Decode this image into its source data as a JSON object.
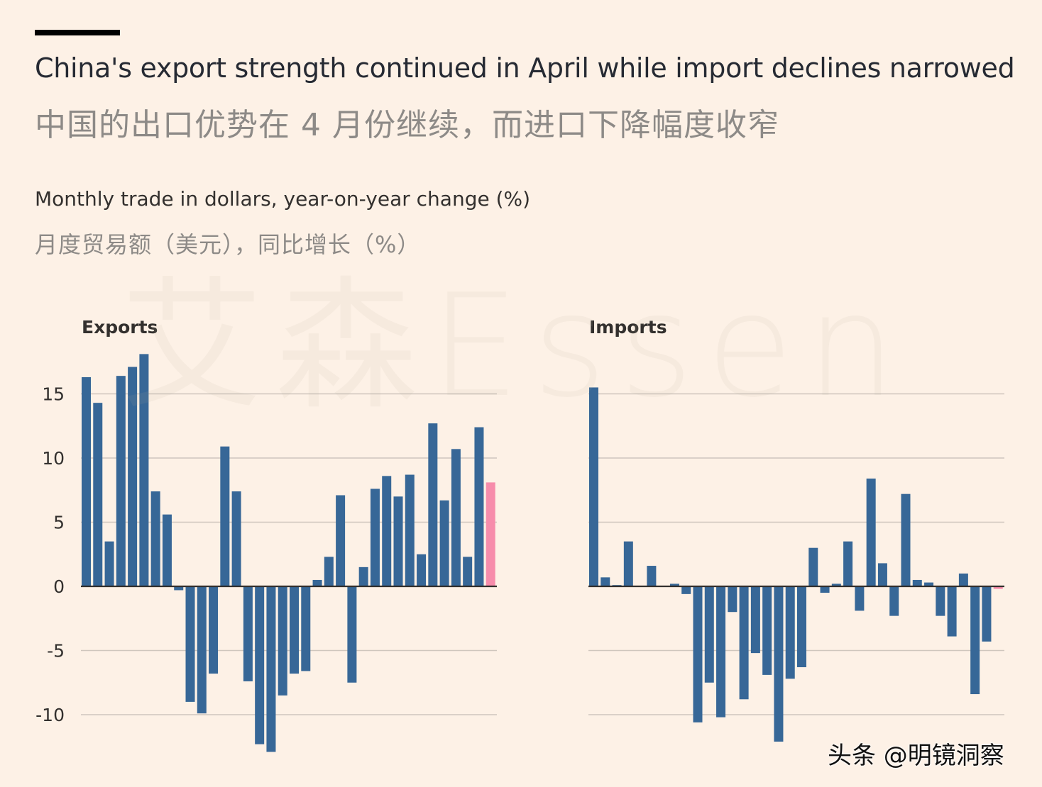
{
  "header": {
    "title": "China's export strength continued in April while import declines narrowed",
    "title_cn": "中国的出口优势在 4 月份继续，而进口下降幅度收窄",
    "subtitle": "Monthly trade in dollars, year-on-year change (%)",
    "subtitle_cn": "月度贸易额（美元），同比增长（%）"
  },
  "watermark": "艾森Essen",
  "credit": "头条 @明镜洞察",
  "colors": {
    "background": "#fdf1e6",
    "bar": "#376797",
    "highlight": "#f78cab",
    "grid": "#cfc6bd",
    "zero_line": "#33302e"
  },
  "chart_data": [
    {
      "type": "bar",
      "title": "Exports",
      "ylim": [
        -12,
        18
      ],
      "y_ticks": [
        15,
        10,
        5,
        0,
        -5,
        -10
      ],
      "y_tick_labels": [
        "15",
        "10",
        "5",
        "0",
        "-5",
        "-10"
      ],
      "grid": true,
      "values": [
        16.3,
        14.3,
        3.5,
        16.4,
        17.1,
        18.1,
        7.4,
        5.6,
        -0.3,
        -9.0,
        -9.9,
        -6.8,
        10.9,
        7.4,
        -7.4,
        -12.3,
        -12.9,
        -8.5,
        -6.8,
        -6.6,
        0.5,
        2.3,
        7.1,
        -7.5,
        1.5,
        7.6,
        8.6,
        7.0,
        8.7,
        2.5,
        12.7,
        6.7,
        10.7,
        2.3,
        12.4,
        8.1
      ],
      "highlight_last": true
    },
    {
      "type": "bar",
      "title": "Imports",
      "ylim": [
        -12,
        18
      ],
      "y_ticks": [
        15,
        10,
        5,
        0,
        -5,
        -10
      ],
      "grid": true,
      "values": [
        15.5,
        0.7,
        0.1,
        3.5,
        0.0,
        1.6,
        0.0,
        0.2,
        -0.6,
        -10.6,
        -7.5,
        -10.2,
        -2.0,
        -8.8,
        -5.2,
        -6.9,
        -12.1,
        -7.2,
        -6.3,
        3.0,
        -0.5,
        0.2,
        3.5,
        -1.9,
        8.4,
        1.8,
        -2.3,
        7.2,
        0.5,
        0.3,
        -2.3,
        -3.9,
        1.0,
        -8.4,
        -4.3,
        -0.2
      ],
      "highlight_last": true
    }
  ]
}
